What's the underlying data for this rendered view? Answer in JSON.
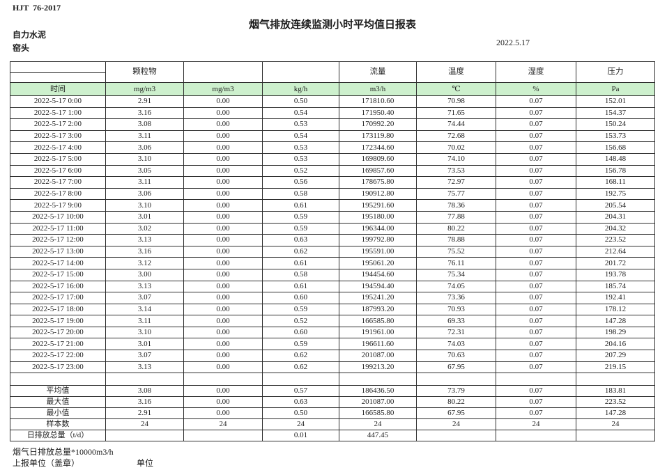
{
  "doc": {
    "standard": "HJT  76-2017",
    "title": "烟气排放连续监测小时平均值日报表",
    "company": "自力水泥",
    "station": "窑头",
    "date": "2022.5.17"
  },
  "colors": {
    "unit_row_green": "#cdf0cd",
    "border": "#2e2e2e",
    "text": "#1c1c1c"
  },
  "table": {
    "group_headers": [
      "",
      "颗粒物",
      "",
      "",
      "流量",
      "温度",
      "湿度",
      "压力"
    ],
    "unit_row": [
      "时间",
      "mg/m3",
      "mg/m3",
      "kg/h",
      "m3/h",
      "℃",
      "%",
      "Pa"
    ],
    "rows": [
      [
        "2022-5-17 0:00",
        "2.91",
        "0.00",
        "0.50",
        "171810.60",
        "70.98",
        "0.07",
        "152.01"
      ],
      [
        "2022-5-17 1:00",
        "3.16",
        "0.00",
        "0.54",
        "171950.40",
        "71.65",
        "0.07",
        "154.37"
      ],
      [
        "2022-5-17 2:00",
        "3.08",
        "0.00",
        "0.53",
        "170992.20",
        "74.44",
        "0.07",
        "150.24"
      ],
      [
        "2022-5-17 3:00",
        "3.11",
        "0.00",
        "0.54",
        "173119.80",
        "72.68",
        "0.07",
        "153.73"
      ],
      [
        "2022-5-17 4:00",
        "3.06",
        "0.00",
        "0.53",
        "172344.60",
        "70.02",
        "0.07",
        "156.68"
      ],
      [
        "2022-5-17 5:00",
        "3.10",
        "0.00",
        "0.53",
        "169809.60",
        "74.10",
        "0.07",
        "148.48"
      ],
      [
        "2022-5-17 6:00",
        "3.05",
        "0.00",
        "0.52",
        "169857.60",
        "73.53",
        "0.07",
        "156.78"
      ],
      [
        "2022-5-17 7:00",
        "3.11",
        "0.00",
        "0.56",
        "178675.80",
        "72.97",
        "0.07",
        "168.11"
      ],
      [
        "2022-5-17 8:00",
        "3.06",
        "0.00",
        "0.58",
        "190912.80",
        "75.77",
        "0.07",
        "192.75"
      ],
      [
        "2022-5-17 9:00",
        "3.10",
        "0.00",
        "0.61",
        "195291.60",
        "78.36",
        "0.07",
        "205.54"
      ],
      [
        "2022-5-17 10:00",
        "3.01",
        "0.00",
        "0.59",
        "195180.00",
        "77.88",
        "0.07",
        "204.31"
      ],
      [
        "2022-5-17 11:00",
        "3.02",
        "0.00",
        "0.59",
        "196344.00",
        "80.22",
        "0.07",
        "204.32"
      ],
      [
        "2022-5-17 12:00",
        "3.13",
        "0.00",
        "0.63",
        "199792.80",
        "78.88",
        "0.07",
        "223.52"
      ],
      [
        "2022-5-17 13:00",
        "3.16",
        "0.00",
        "0.62",
        "195591.00",
        "75.52",
        "0.07",
        "212.64"
      ],
      [
        "2022-5-17 14:00",
        "3.12",
        "0.00",
        "0.61",
        "195061.20",
        "76.11",
        "0.07",
        "201.72"
      ],
      [
        "2022-5-17 15:00",
        "3.00",
        "0.00",
        "0.58",
        "194454.60",
        "75.34",
        "0.07",
        "193.78"
      ],
      [
        "2022-5-17 16:00",
        "3.13",
        "0.00",
        "0.61",
        "194594.40",
        "74.05",
        "0.07",
        "185.74"
      ],
      [
        "2022-5-17 17:00",
        "3.07",
        "0.00",
        "0.60",
        "195241.20",
        "73.36",
        "0.07",
        "192.41"
      ],
      [
        "2022-5-17 18:00",
        "3.14",
        "0.00",
        "0.59",
        "187993.20",
        "70.93",
        "0.07",
        "178.12"
      ],
      [
        "2022-5-17 19:00",
        "3.11",
        "0.00",
        "0.52",
        "166585.80",
        "69.33",
        "0.07",
        "147.28"
      ],
      [
        "2022-5-17 20:00",
        "3.10",
        "0.00",
        "0.60",
        "191961.00",
        "72.31",
        "0.07",
        "198.29"
      ],
      [
        "2022-5-17 21:00",
        "3.01",
        "0.00",
        "0.59",
        "196611.60",
        "74.03",
        "0.07",
        "204.16"
      ],
      [
        "2022-5-17 22:00",
        "3.07",
        "0.00",
        "0.62",
        "201087.00",
        "70.63",
        "0.07",
        "207.29"
      ],
      [
        "2022-5-17 23:00",
        "3.13",
        "0.00",
        "0.62",
        "199213.20",
        "67.95",
        "0.07",
        "219.15"
      ]
    ],
    "summary": [
      [
        "平均值",
        "3.08",
        "0.00",
        "0.57",
        "186436.50",
        "73.79",
        "0.07",
        "183.81"
      ],
      [
        "最大值",
        "3.16",
        "0.00",
        "0.63",
        "201087.00",
        "80.22",
        "0.07",
        "223.52"
      ],
      [
        "最小值",
        "2.91",
        "0.00",
        "0.50",
        "166585.80",
        "67.95",
        "0.07",
        "147.28"
      ],
      [
        "样本数",
        "24",
        "24",
        "24",
        "24",
        "24",
        "24",
        "24"
      ],
      [
        "日排放总量（t/d）",
        "",
        "",
        "0.01",
        "447.45",
        "",
        "",
        ""
      ]
    ]
  },
  "footer": {
    "note": "烟气日排放总量*10000m3/h",
    "report_unit": "上报单位（盖章）",
    "unit_label": "单位"
  }
}
